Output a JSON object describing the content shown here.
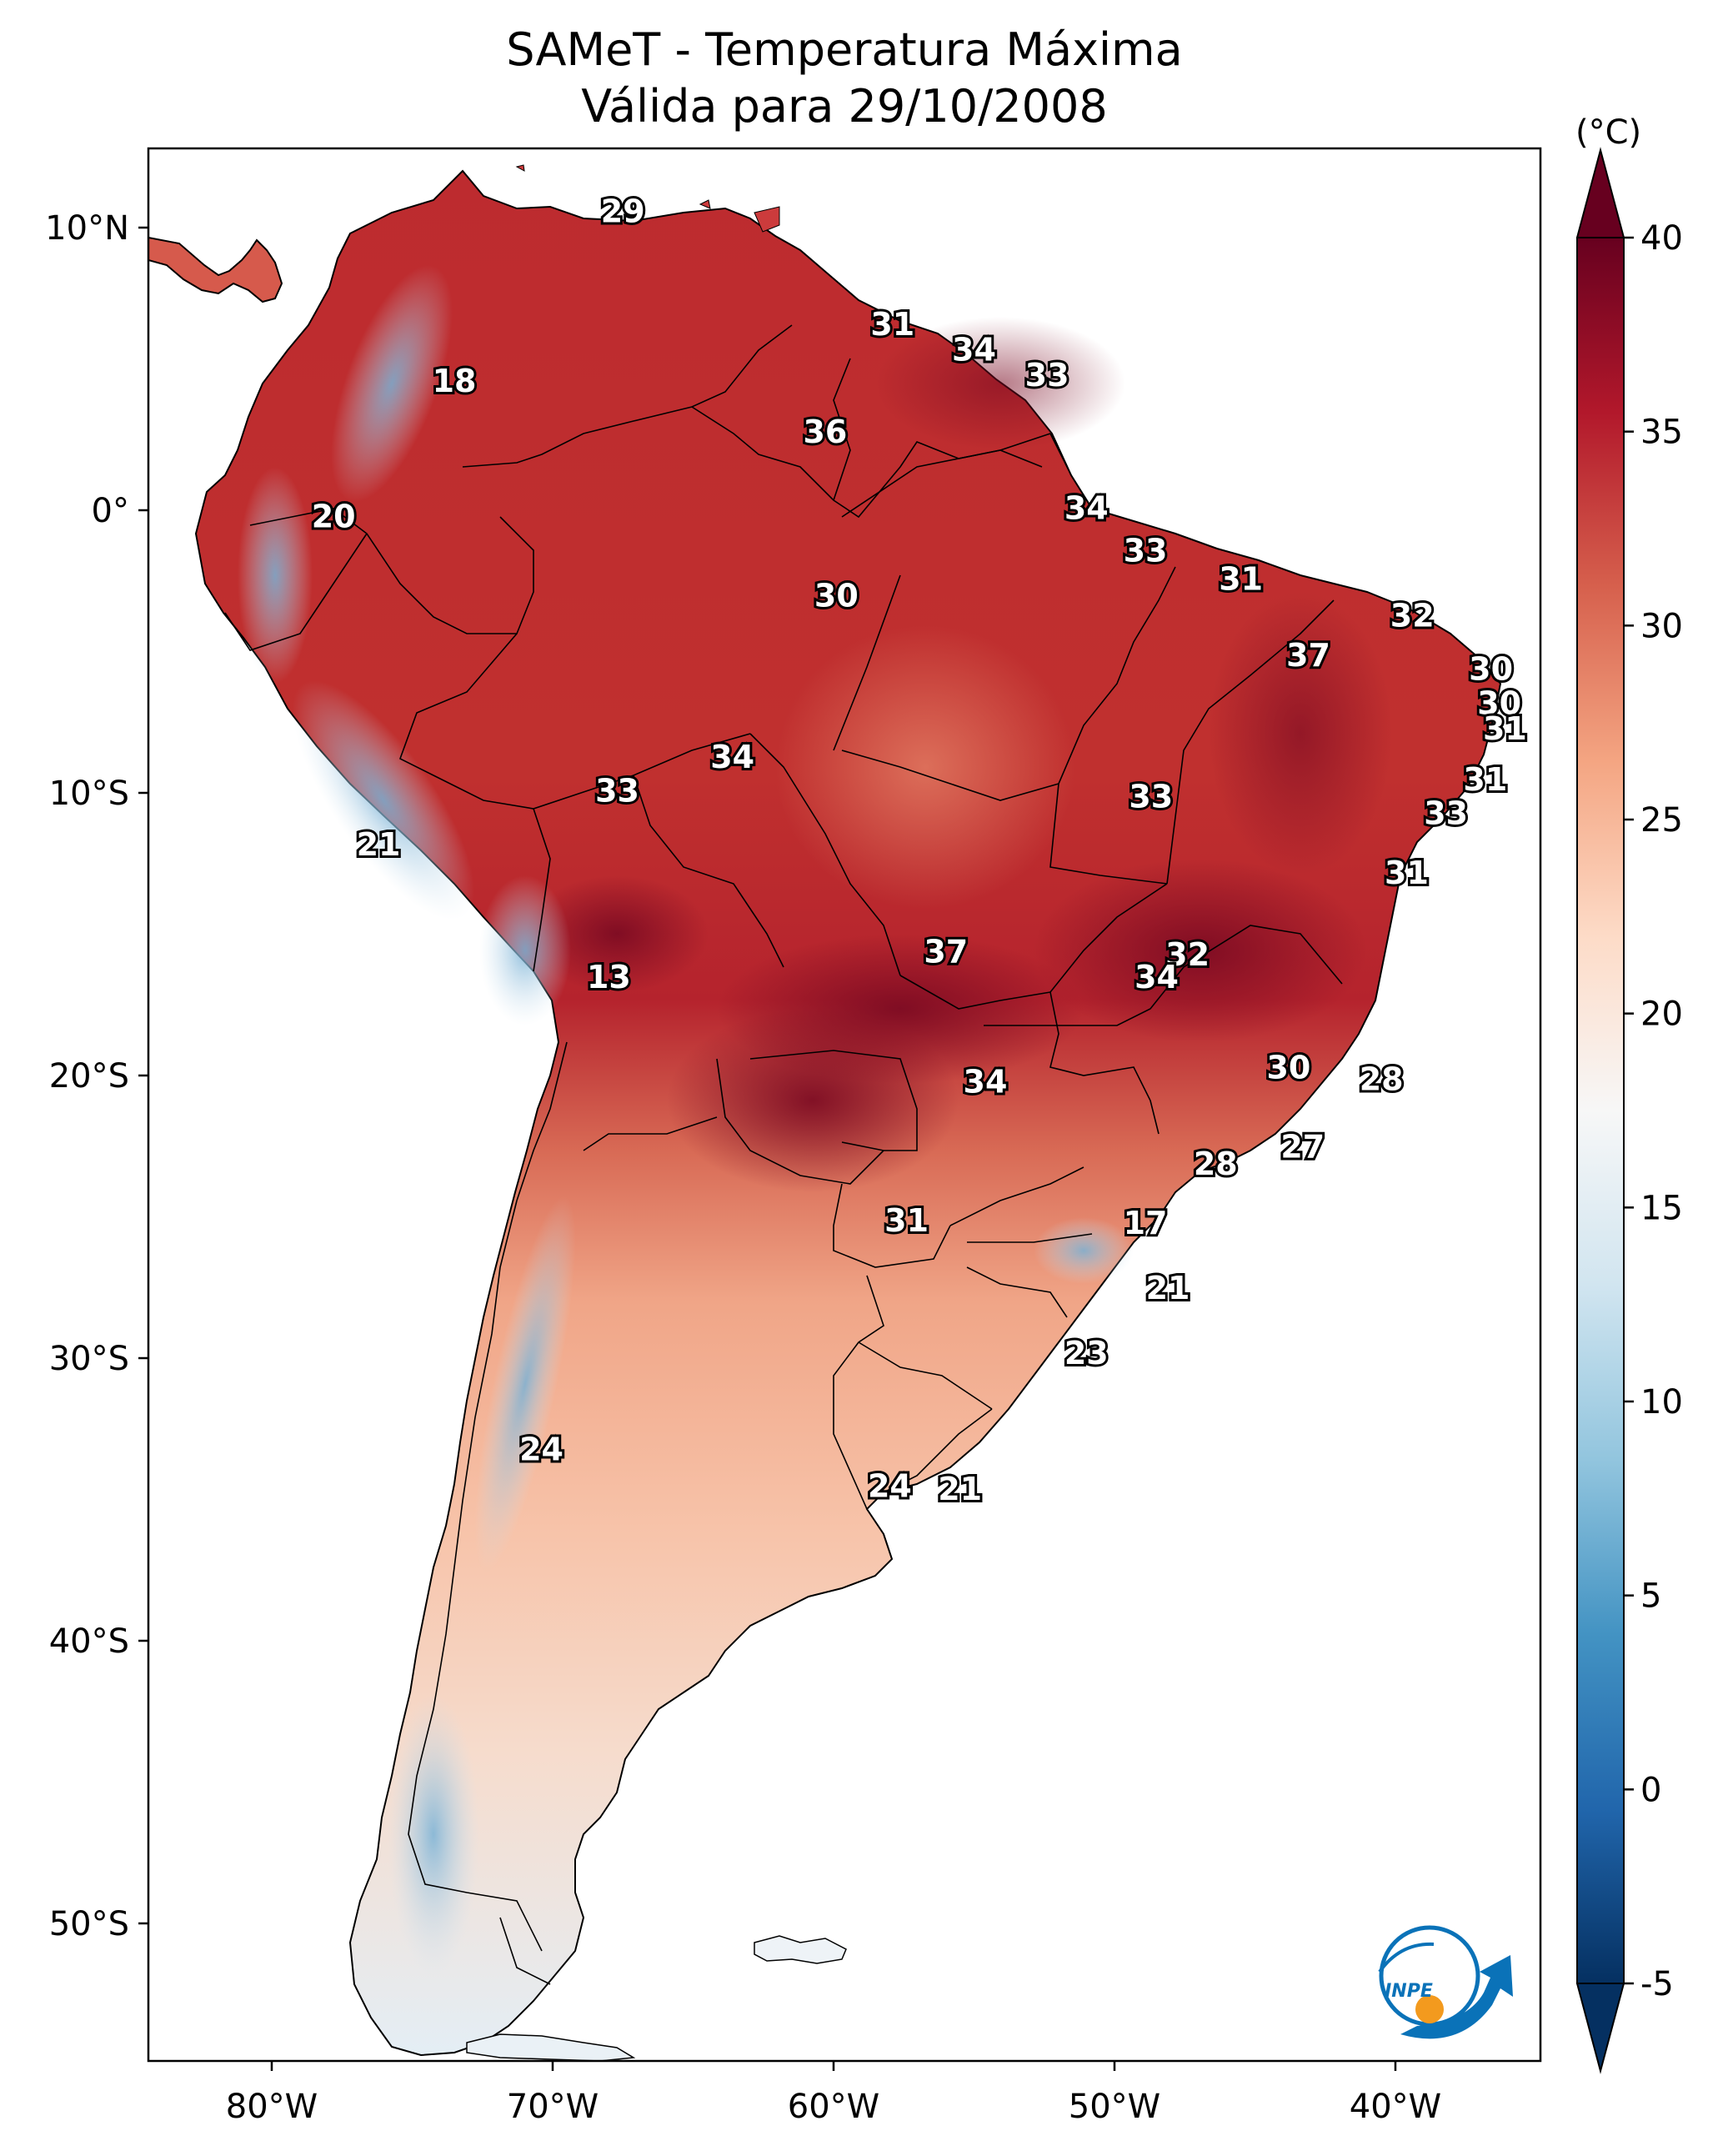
{
  "title_line1": "SAMeT - Temperatura Máxima",
  "title_line2": "Válida para 29/10/2008",
  "map": {
    "lon_ticks": [
      {
        "lon": -80,
        "label": "80°W"
      },
      {
        "lon": -70,
        "label": "70°W"
      },
      {
        "lon": -60,
        "label": "60°W"
      },
      {
        "lon": -50,
        "label": "50°W"
      },
      {
        "lon": -40,
        "label": "40°W"
      }
    ],
    "lat_ticks": [
      {
        "lat": 10,
        "label": "10°N"
      },
      {
        "lat": 0,
        "label": "0°"
      },
      {
        "lat": -10,
        "label": "10°S"
      },
      {
        "lat": -20,
        "label": "20°S"
      },
      {
        "lat": -30,
        "label": "30°S"
      },
      {
        "lat": -40,
        "label": "40°S"
      },
      {
        "lat": -50,
        "label": "50°S"
      }
    ],
    "contour_labels": [
      {
        "lon": -67.5,
        "lat": 10.5,
        "value": "29"
      },
      {
        "lon": -73.5,
        "lat": 4.5,
        "value": "18"
      },
      {
        "lon": -57.9,
        "lat": 6.5,
        "value": "31"
      },
      {
        "lon": -55.0,
        "lat": 5.6,
        "value": "34"
      },
      {
        "lon": -52.4,
        "lat": 4.7,
        "value": "33"
      },
      {
        "lon": -60.3,
        "lat": 2.7,
        "value": "36"
      },
      {
        "lon": -77.8,
        "lat": -0.3,
        "value": "20"
      },
      {
        "lon": -51.0,
        "lat": 0.0,
        "value": "34"
      },
      {
        "lon": -48.9,
        "lat": -1.5,
        "value": "33"
      },
      {
        "lon": -45.5,
        "lat": -2.5,
        "value": "31"
      },
      {
        "lon": -59.9,
        "lat": -3.1,
        "value": "30"
      },
      {
        "lon": -39.4,
        "lat": -3.8,
        "value": "32"
      },
      {
        "lon": -43.1,
        "lat": -5.2,
        "value": "37"
      },
      {
        "lon": -36.6,
        "lat": -5.7,
        "value": "30"
      },
      {
        "lon": -36.3,
        "lat": -6.9,
        "value": "30"
      },
      {
        "lon": -36.1,
        "lat": -7.8,
        "value": "31"
      },
      {
        "lon": -63.6,
        "lat": -8.8,
        "value": "34"
      },
      {
        "lon": -67.7,
        "lat": -10.0,
        "value": "33"
      },
      {
        "lon": -48.7,
        "lat": -10.2,
        "value": "33"
      },
      {
        "lon": -36.8,
        "lat": -9.6,
        "value": "31"
      },
      {
        "lon": -38.2,
        "lat": -10.8,
        "value": "33"
      },
      {
        "lon": -76.2,
        "lat": -11.9,
        "value": "21"
      },
      {
        "lon": -39.6,
        "lat": -12.9,
        "value": "31"
      },
      {
        "lon": -56.0,
        "lat": -15.7,
        "value": "37"
      },
      {
        "lon": -47.4,
        "lat": -15.8,
        "value": "32"
      },
      {
        "lon": -48.5,
        "lat": -16.6,
        "value": "34"
      },
      {
        "lon": -68.0,
        "lat": -16.6,
        "value": "13"
      },
      {
        "lon": -43.8,
        "lat": -19.8,
        "value": "30"
      },
      {
        "lon": -40.5,
        "lat": -20.2,
        "value": "28"
      },
      {
        "lon": -54.6,
        "lat": -20.3,
        "value": "34"
      },
      {
        "lon": -43.3,
        "lat": -22.6,
        "value": "27"
      },
      {
        "lon": -46.4,
        "lat": -23.2,
        "value": "28"
      },
      {
        "lon": -57.4,
        "lat": -25.2,
        "value": "31"
      },
      {
        "lon": -48.9,
        "lat": -25.3,
        "value": "17"
      },
      {
        "lon": -48.1,
        "lat": -27.6,
        "value": "21"
      },
      {
        "lon": -51.0,
        "lat": -29.9,
        "value": "23"
      },
      {
        "lon": -70.4,
        "lat": -33.3,
        "value": "24"
      },
      {
        "lon": -58.0,
        "lat": -34.6,
        "value": "24"
      },
      {
        "lon": -55.5,
        "lat": -34.7,
        "value": "21"
      }
    ],
    "logo_text": "INPE"
  },
  "colorbar": {
    "unit_label": "(°C)",
    "min": -5,
    "max": 40,
    "ticks": [
      {
        "value": 40,
        "label": "40"
      },
      {
        "value": 35,
        "label": "35"
      },
      {
        "value": 30,
        "label": "30"
      },
      {
        "value": 25,
        "label": "25"
      },
      {
        "value": 20,
        "label": "20"
      },
      {
        "value": 15,
        "label": "15"
      },
      {
        "value": 10,
        "label": "10"
      },
      {
        "value": 5,
        "label": "5"
      },
      {
        "value": 0,
        "label": "0"
      },
      {
        "value": -5,
        "label": "-5"
      }
    ],
    "colors": [
      "#053061",
      "#2166ac",
      "#4393c3",
      "#92c5de",
      "#d1e5f0",
      "#f7f7f7",
      "#fddbc7",
      "#f4a582",
      "#d6604d",
      "#b2182b",
      "#67001f"
    ]
  }
}
